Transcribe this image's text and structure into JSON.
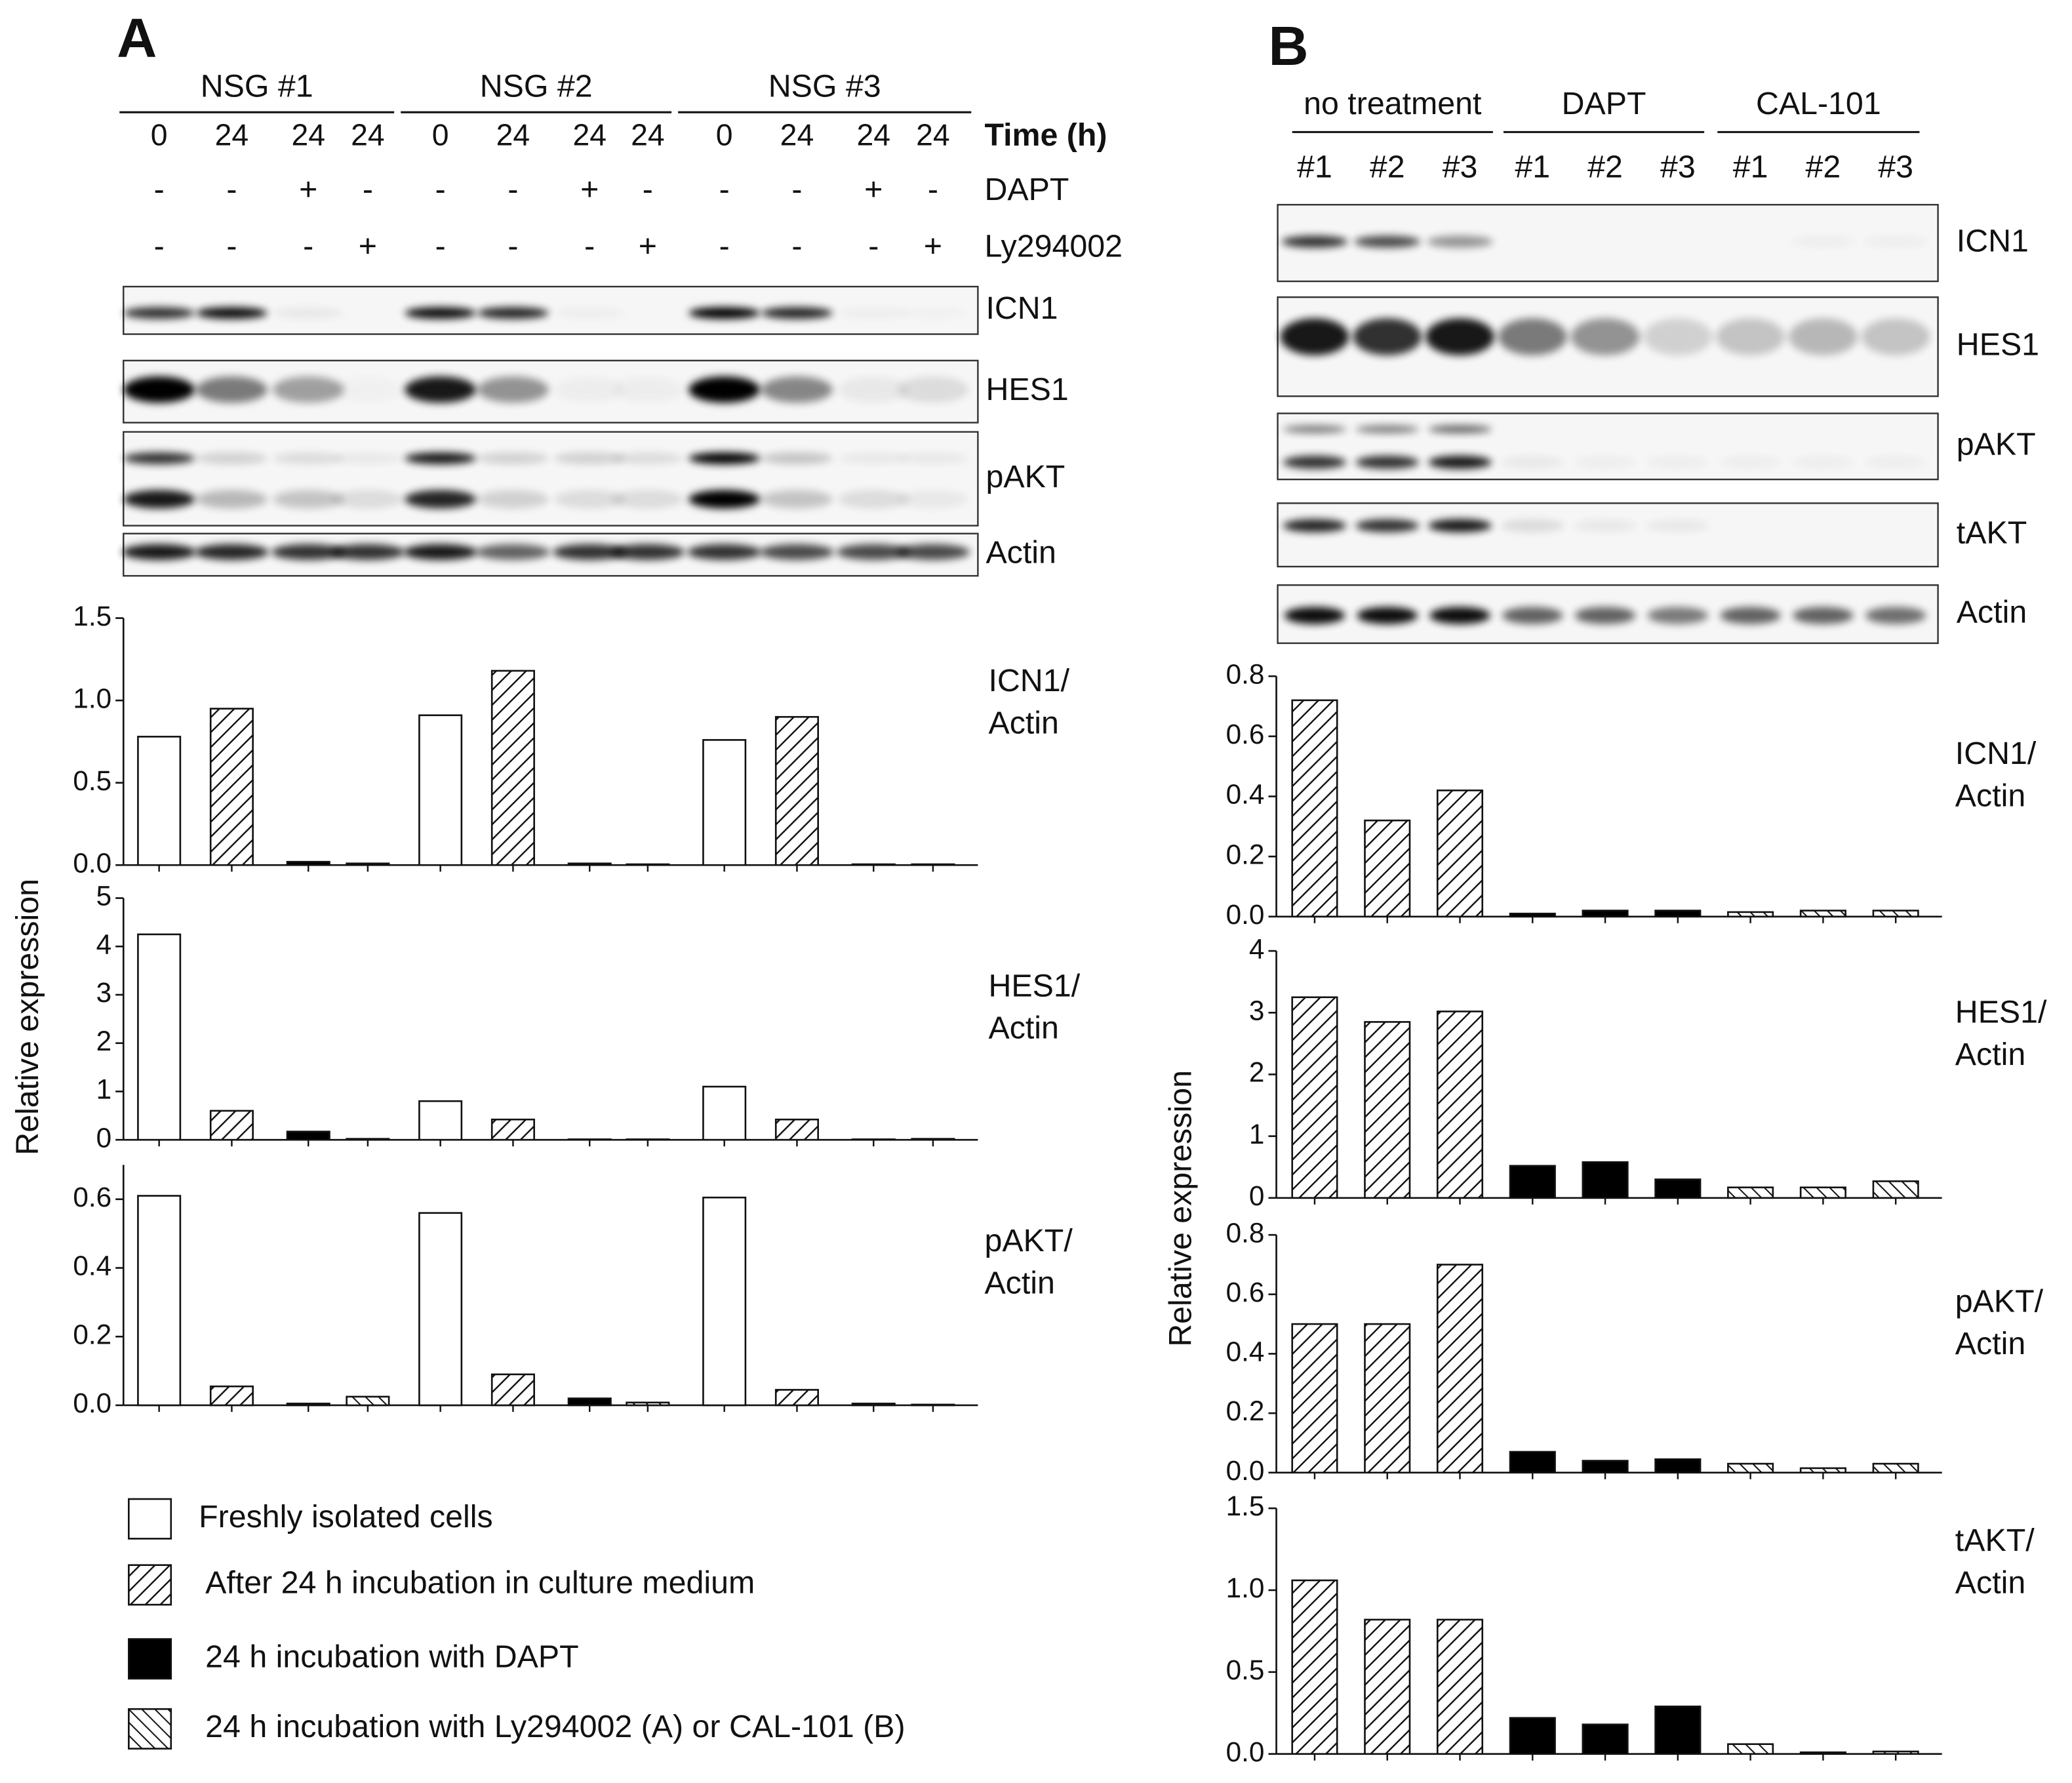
{
  "panels": [
    "A",
    "B"
  ],
  "blot_a": {
    "groups": [
      "NSG #1",
      "NSG #2",
      "NSG #3"
    ],
    "time_label": "Time (h)",
    "times": [
      0,
      24,
      24,
      24,
      0,
      24,
      24,
      24,
      0,
      24,
      24,
      24
    ],
    "rows": [
      {
        "name": "DAPT",
        "marks": [
          "-",
          "-",
          "+",
          "-",
          "-",
          "-",
          "+",
          "-",
          "-",
          "-",
          "+",
          "-"
        ]
      },
      {
        "name": "Ly294002",
        "marks": [
          "-",
          "-",
          "-",
          "+",
          "-",
          "-",
          "-",
          "+",
          "-",
          "-",
          "-",
          "+"
        ]
      }
    ],
    "bands": [
      "ICN1",
      "HES1",
      "pAKT",
      "Actin"
    ]
  },
  "blot_b": {
    "groups": [
      "no treatment",
      "DAPT",
      "CAL-101"
    ],
    "samples": [
      "#1",
      "#2",
      "#3",
      "#1",
      "#2",
      "#3",
      "#1",
      "#2",
      "#3"
    ],
    "bands": [
      "ICN1",
      "HES1",
      "pAKT",
      "tAKT",
      "Actin"
    ]
  },
  "legend": [
    {
      "label": "Freshly isolated cells",
      "fill": "open"
    },
    {
      "label": "After 24 h incubation in culture medium",
      "fill": "hatch"
    },
    {
      "label": "24 h incubation with DAPT",
      "fill": "solid"
    },
    {
      "label": "24 h incubation with Ly294002 (A) or CAL-101 (B)",
      "fill": "backhatch"
    }
  ],
  "chart_data": [
    {
      "type": "bar",
      "label": [
        "ICN1/",
        "Actin"
      ],
      "categories": [
        null,
        null,
        null,
        null,
        null,
        null,
        null,
        null,
        null,
        null,
        null,
        null
      ],
      "values": [
        0.78,
        0.95,
        0.02,
        0.01,
        0.91,
        1.18,
        0.01,
        0.005,
        0.76,
        0.9,
        0.005,
        0.005
      ],
      "fills": [
        "open",
        "hatch",
        "solid",
        "backhatch",
        "open",
        "hatch",
        "solid",
        "backhatch",
        "open",
        "hatch",
        "solid",
        "backhatch"
      ],
      "ylim": [
        0,
        1.5
      ],
      "yticks": [
        {
          "value": 0,
          "label": "0.0"
        },
        0.5,
        {
          "value": 1,
          "label": "1.0"
        },
        1.5
      ]
    },
    {
      "type": "bar",
      "label": [
        "HES1/",
        "Actin"
      ],
      "y_label": "Relative expression",
      "categories": [
        null,
        null,
        null,
        null,
        null,
        null,
        null,
        null,
        null,
        null,
        null,
        null
      ],
      "values": [
        4.25,
        0.6,
        0.17,
        0.02,
        0.8,
        0.42,
        0.01,
        0.01,
        1.1,
        0.42,
        0.01,
        0.02
      ],
      "fills": [
        "open",
        "hatch",
        "solid",
        "backhatch",
        "open",
        "hatch",
        "solid",
        "backhatch",
        "open",
        "hatch",
        "solid",
        "backhatch"
      ],
      "ylim": [
        0,
        5
      ],
      "yticks": [
        0,
        1,
        2,
        3,
        4,
        5
      ]
    },
    {
      "type": "bar",
      "label": [
        "pAKT/",
        "Actin"
      ],
      "categories": [
        null,
        null,
        null,
        null,
        null,
        null,
        null,
        null,
        null,
        null,
        null,
        null
      ],
      "values": [
        0.61,
        0.055,
        0.005,
        0.025,
        0.56,
        0.09,
        0.02,
        0.008,
        0.605,
        0.045,
        0.005,
        0.002
      ],
      "fills": [
        "open",
        "hatch",
        "solid",
        "backhatch",
        "open",
        "hatch",
        "solid",
        "backhatch",
        "open",
        "hatch",
        "solid",
        "backhatch"
      ],
      "ylim": [
        0,
        0.7
      ],
      "yticks": [
        {
          "value": 0,
          "label": "0.0"
        },
        0.2,
        0.4,
        0.6
      ]
    },
    {
      "type": "bar",
      "label": [
        "ICN1/",
        "Actin"
      ],
      "categories": [
        null,
        null,
        null,
        null,
        null,
        null,
        null,
        null,
        null
      ],
      "values": [
        0.72,
        0.32,
        0.42,
        0.01,
        0.02,
        0.02,
        0.015,
        0.02,
        0.02
      ],
      "fills": [
        "hatch",
        "hatch",
        "hatch",
        "solid",
        "solid",
        "solid",
        "backhatch",
        "backhatch",
        "backhatch"
      ],
      "ylim": [
        0,
        0.8
      ],
      "yticks": [
        {
          "value": 0,
          "label": "0.0"
        },
        0.2,
        0.4,
        0.6,
        0.8
      ]
    },
    {
      "type": "bar",
      "label": [
        "HES1/",
        "Actin"
      ],
      "categories": [
        null,
        null,
        null,
        null,
        null,
        null,
        null,
        null,
        null
      ],
      "values": [
        3.25,
        2.85,
        3.02,
        0.52,
        0.58,
        0.3,
        0.17,
        0.17,
        0.27
      ],
      "fills": [
        "hatch",
        "hatch",
        "hatch",
        "solid",
        "solid",
        "solid",
        "backhatch",
        "backhatch",
        "backhatch"
      ],
      "ylim": [
        0,
        4
      ],
      "yticks": [
        0,
        1,
        2,
        3,
        4
      ]
    },
    {
      "type": "bar",
      "label": [
        "pAKT/",
        "Actin"
      ],
      "y_label": "Relative expression",
      "categories": [
        null,
        null,
        null,
        null,
        null,
        null,
        null,
        null,
        null
      ],
      "values": [
        0.5,
        0.5,
        0.7,
        0.07,
        0.04,
        0.045,
        0.03,
        0.015,
        0.03
      ],
      "fills": [
        "hatch",
        "hatch",
        "hatch",
        "solid",
        "solid",
        "solid",
        "backhatch",
        "backhatch",
        "backhatch"
      ],
      "ylim": [
        0,
        0.8
      ],
      "yticks": [
        {
          "value": 0,
          "label": "0.0"
        },
        0.2,
        0.4,
        0.6,
        0.8
      ]
    },
    {
      "type": "bar",
      "label": [
        "tAKT/",
        "Actin"
      ],
      "categories": [
        null,
        null,
        null,
        null,
        null,
        null,
        null,
        null,
        null
      ],
      "values": [
        1.06,
        0.82,
        0.82,
        0.22,
        0.18,
        0.29,
        0.06,
        0.01,
        0.015
      ],
      "fills": [
        "hatch",
        "hatch",
        "hatch",
        "solid",
        "solid",
        "solid",
        "backhatch",
        "backhatch",
        "backhatch"
      ],
      "ylim": [
        0,
        1.5
      ],
      "yticks": [
        {
          "value": 0,
          "label": "0.0"
        },
        0.5,
        {
          "value": 1,
          "label": "1.0"
        },
        1.5
      ]
    }
  ]
}
